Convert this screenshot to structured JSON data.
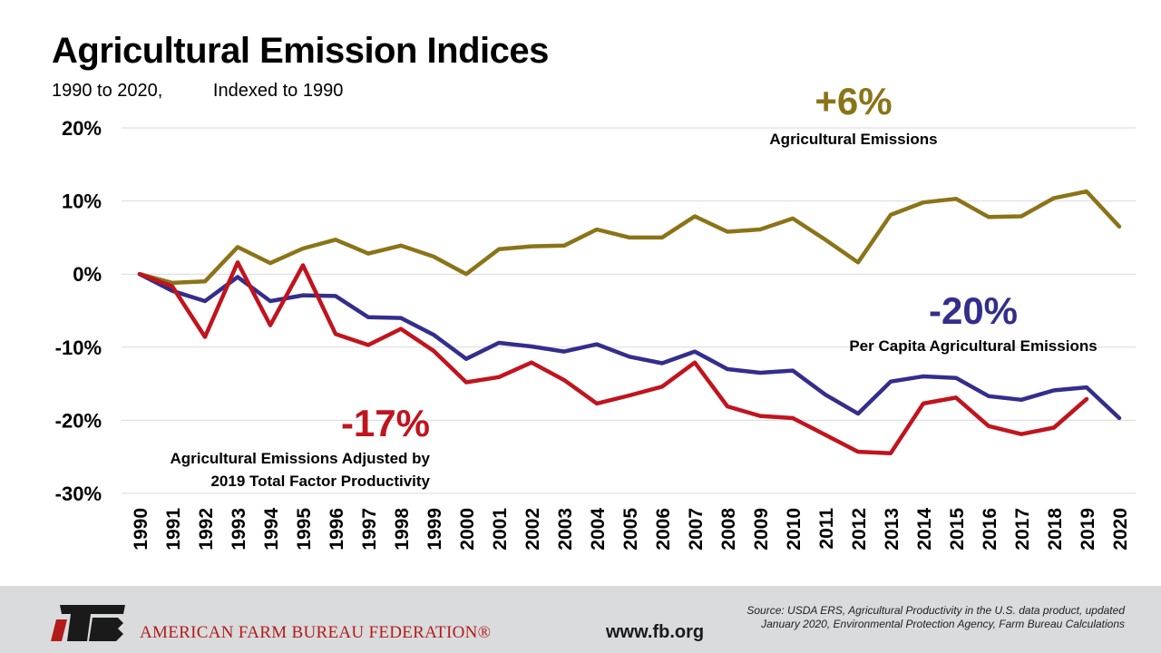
{
  "title": "Agricultural Emission Indices",
  "subtitle": "1990 to 2020,          Indexed to 1990",
  "footer": {
    "org_name": "AMERICAN FARM BUREAU FEDERATION®",
    "website": "www.fb.org",
    "source_line1": "Source: USDA ERS, Agricultural Productivity in the U.S. data product, updated",
    "source_line2": "January 2020, Environmental Protection Agency, Farm Bureau Calculations",
    "logo_icon": "fb-logo-icon"
  },
  "chart_data": {
    "type": "line",
    "ylim": [
      -30,
      20
    ],
    "yticks": [
      20,
      10,
      0,
      -10,
      -20,
      -30
    ],
    "ytick_labels": [
      "20%",
      "10%",
      "0%",
      "-10%",
      "-20%",
      "-30%"
    ],
    "grid": true,
    "x": [
      "1990",
      "1991",
      "1992",
      "1993",
      "1994",
      "1995",
      "1996",
      "1997",
      "1998",
      "1999",
      "2000",
      "2001",
      "2002",
      "2003",
      "2004",
      "2005",
      "2006",
      "2007",
      "2008",
      "2009",
      "2010",
      "2011",
      "2012",
      "2013",
      "2014",
      "2015",
      "2016",
      "2017",
      "2018",
      "2019",
      "2020"
    ],
    "series": [
      {
        "key": "ag",
        "color": "#8b7418",
        "values": [
          0,
          -1.2,
          -1.0,
          3.7,
          1.5,
          3.5,
          4.7,
          2.8,
          3.9,
          2.4,
          0.0,
          3.4,
          3.8,
          3.9,
          6.1,
          5.0,
          5.0,
          7.9,
          5.8,
          6.1,
          7.6,
          4.7,
          1.6,
          8.1,
          9.8,
          10.3,
          7.8,
          7.9,
          10.4,
          11.3,
          6.5
        ]
      },
      {
        "key": "percapita",
        "color": "#332e8c",
        "values": [
          0,
          -2.3,
          -3.7,
          -0.4,
          -3.7,
          -2.9,
          -3.0,
          -5.9,
          -6.0,
          -8.3,
          -11.6,
          -9.4,
          -9.9,
          -10.6,
          -9.6,
          -11.3,
          -12.2,
          -10.6,
          -13.0,
          -13.5,
          -13.2,
          -16.5,
          -19.1,
          -14.7,
          -14.0,
          -14.2,
          -16.7,
          -17.2,
          -15.9,
          -15.5,
          -19.7
        ]
      },
      {
        "key": "tfp",
        "color": "#c0141e",
        "values": [
          0,
          -1.7,
          -8.6,
          1.6,
          -7.0,
          1.2,
          -8.2,
          -9.7,
          -7.5,
          -10.5,
          -14.8,
          -14.1,
          -12.1,
          -14.5,
          -17.7,
          -16.6,
          -15.4,
          -12.1,
          -18.1,
          -19.4,
          -19.7,
          -22.0,
          -24.3,
          -24.5,
          -17.7,
          -16.9,
          -20.8,
          -21.9,
          -21.0,
          -17.1,
          null
        ]
      }
    ],
    "annotations": {
      "ag_value": "+6%",
      "ag_label": "Agricultural Emissions",
      "percapita_value": "-20%",
      "percapita_label": "Per Capita Agricultural Emissions",
      "tfp_value": "-17%",
      "tfp_label_line1": "Agricultural Emissions Adjusted by",
      "tfp_label_line2": "2019 Total Factor Productivity"
    }
  }
}
